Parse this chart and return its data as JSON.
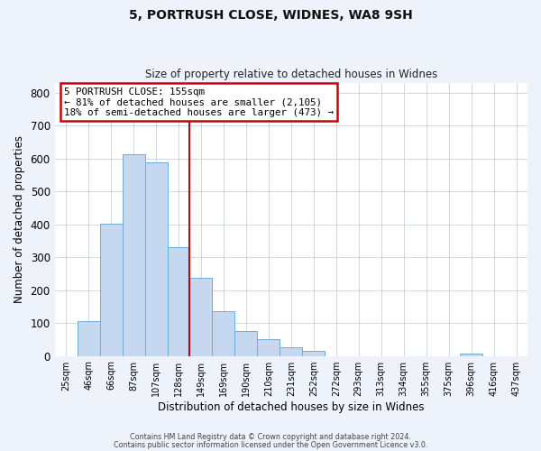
{
  "title": "5, PORTRUSH CLOSE, WIDNES, WA8 9SH",
  "subtitle": "Size of property relative to detached houses in Widnes",
  "xlabel": "Distribution of detached houses by size in Widnes",
  "ylabel": "Number of detached properties",
  "bar_labels": [
    "25sqm",
    "46sqm",
    "66sqm",
    "87sqm",
    "107sqm",
    "128sqm",
    "149sqm",
    "169sqm",
    "190sqm",
    "210sqm",
    "231sqm",
    "252sqm",
    "272sqm",
    "293sqm",
    "313sqm",
    "334sqm",
    "355sqm",
    "375sqm",
    "396sqm",
    "416sqm",
    "437sqm"
  ],
  "bar_values": [
    0,
    105,
    402,
    614,
    590,
    332,
    237,
    135,
    76,
    50,
    26,
    15,
    0,
    0,
    0,
    0,
    0,
    0,
    7,
    0,
    0
  ],
  "bar_color": "#c5d8f0",
  "bar_edge_color": "#6baed6",
  "vline_x": 5.5,
  "vline_color": "#cc0000",
  "ylim": [
    0,
    830
  ],
  "yticks": [
    0,
    100,
    200,
    300,
    400,
    500,
    600,
    700,
    800
  ],
  "annotation_title": "5 PORTRUSH CLOSE: 155sqm",
  "annotation_line1": "← 81% of detached houses are smaller (2,105)",
  "annotation_line2": "18% of semi-detached houses are larger (473) →",
  "annotation_box_color": "#cc0000",
  "footer1": "Contains HM Land Registry data © Crown copyright and database right 2024.",
  "footer2": "Contains public sector information licensed under the Open Government Licence v3.0.",
  "bg_color": "#eef2fb",
  "plot_bg_color": "#ffffff",
  "grid_color": "#c8d0e0"
}
